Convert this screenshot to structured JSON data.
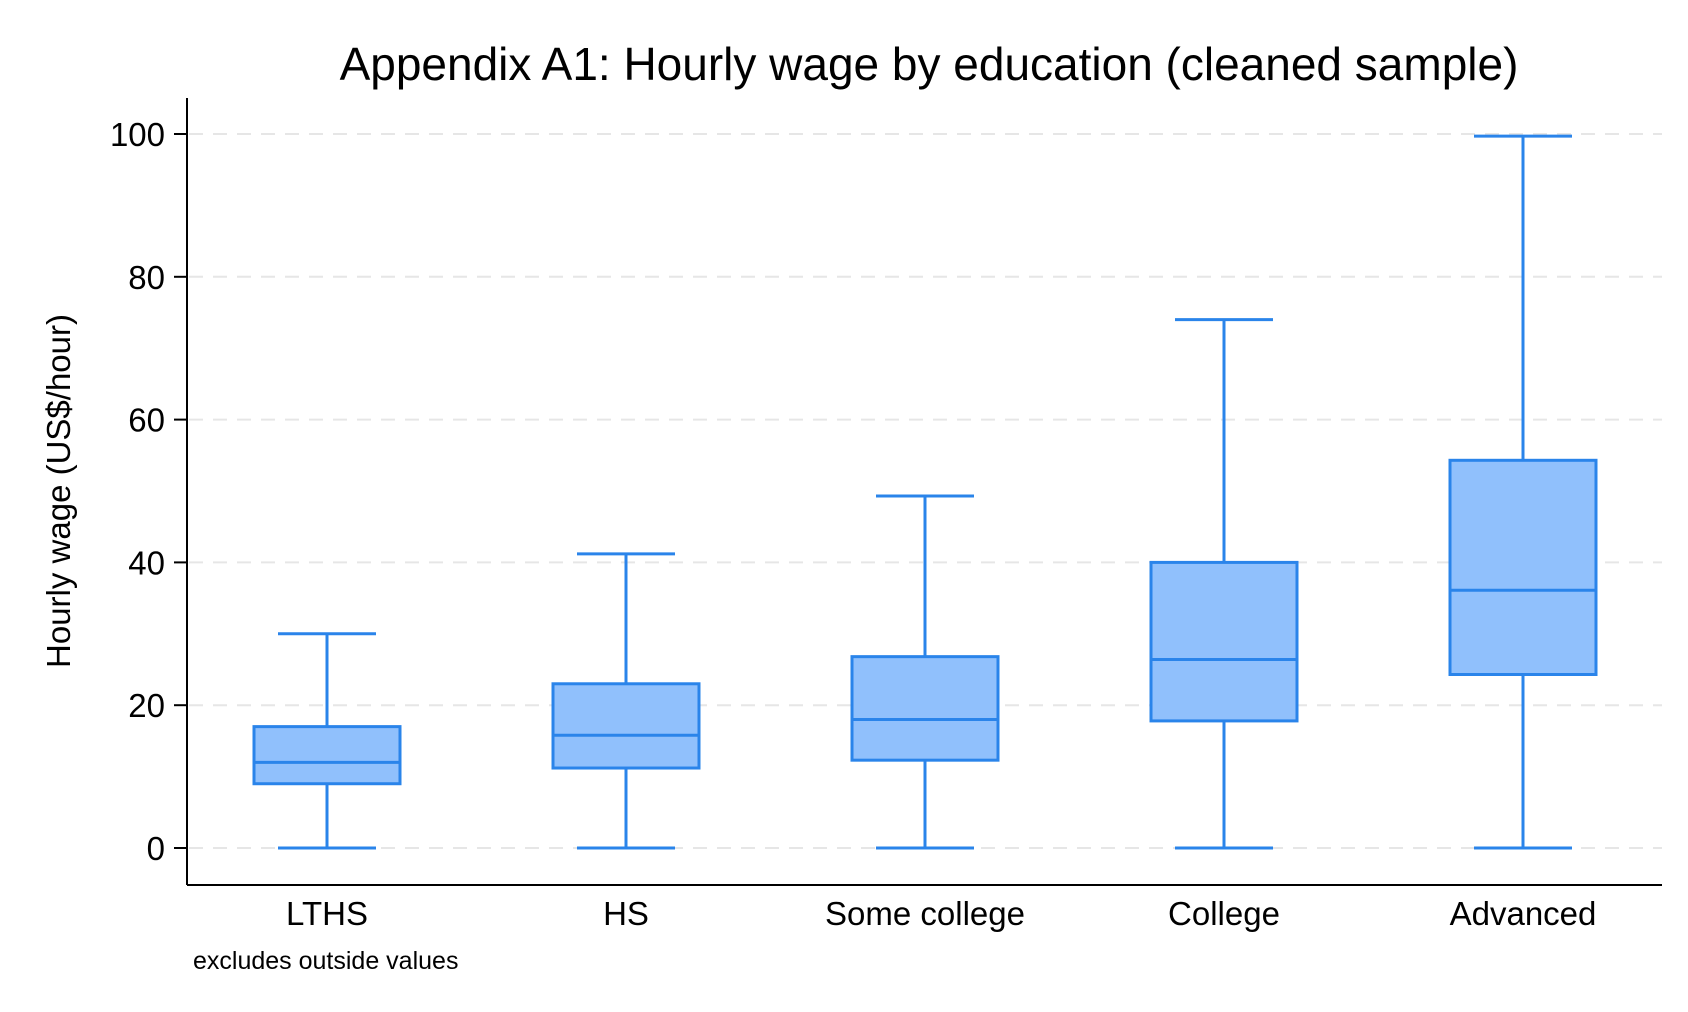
{
  "chart_data": {
    "type": "box",
    "title": "Appendix A1: Hourly wage by education (cleaned sample)",
    "ylabel": "Hourly wage (US$/hour)",
    "xlabel": "",
    "note": "excludes outside values",
    "ylim": [
      -5,
      105
    ],
    "yticks": [
      0,
      20,
      40,
      60,
      80,
      100
    ],
    "grid": true,
    "categories": [
      "LTHS",
      "HS",
      "Some college",
      "College",
      "Advanced"
    ],
    "boxes": [
      {
        "category": "LTHS",
        "min": 0,
        "q1": 9,
        "median": 12,
        "q3": 17,
        "max": 30
      },
      {
        "category": "HS",
        "min": 0,
        "q1": 11.2,
        "median": 15.8,
        "q3": 23,
        "max": 41.2
      },
      {
        "category": "Some college",
        "min": 0,
        "q1": 12.3,
        "median": 18,
        "q3": 26.8,
        "max": 49.3
      },
      {
        "category": "College",
        "min": 0,
        "q1": 17.8,
        "median": 26.4,
        "q3": 40,
        "max": 74
      },
      {
        "category": "Advanced",
        "min": 0,
        "q1": 24.3,
        "median": 36.1,
        "q3": 54.3,
        "max": 99.7
      }
    ],
    "colors": {
      "fill": "#90c0fc",
      "stroke": "#2a84ea",
      "grid": "#e6e6e6",
      "axis": "#000000"
    }
  }
}
